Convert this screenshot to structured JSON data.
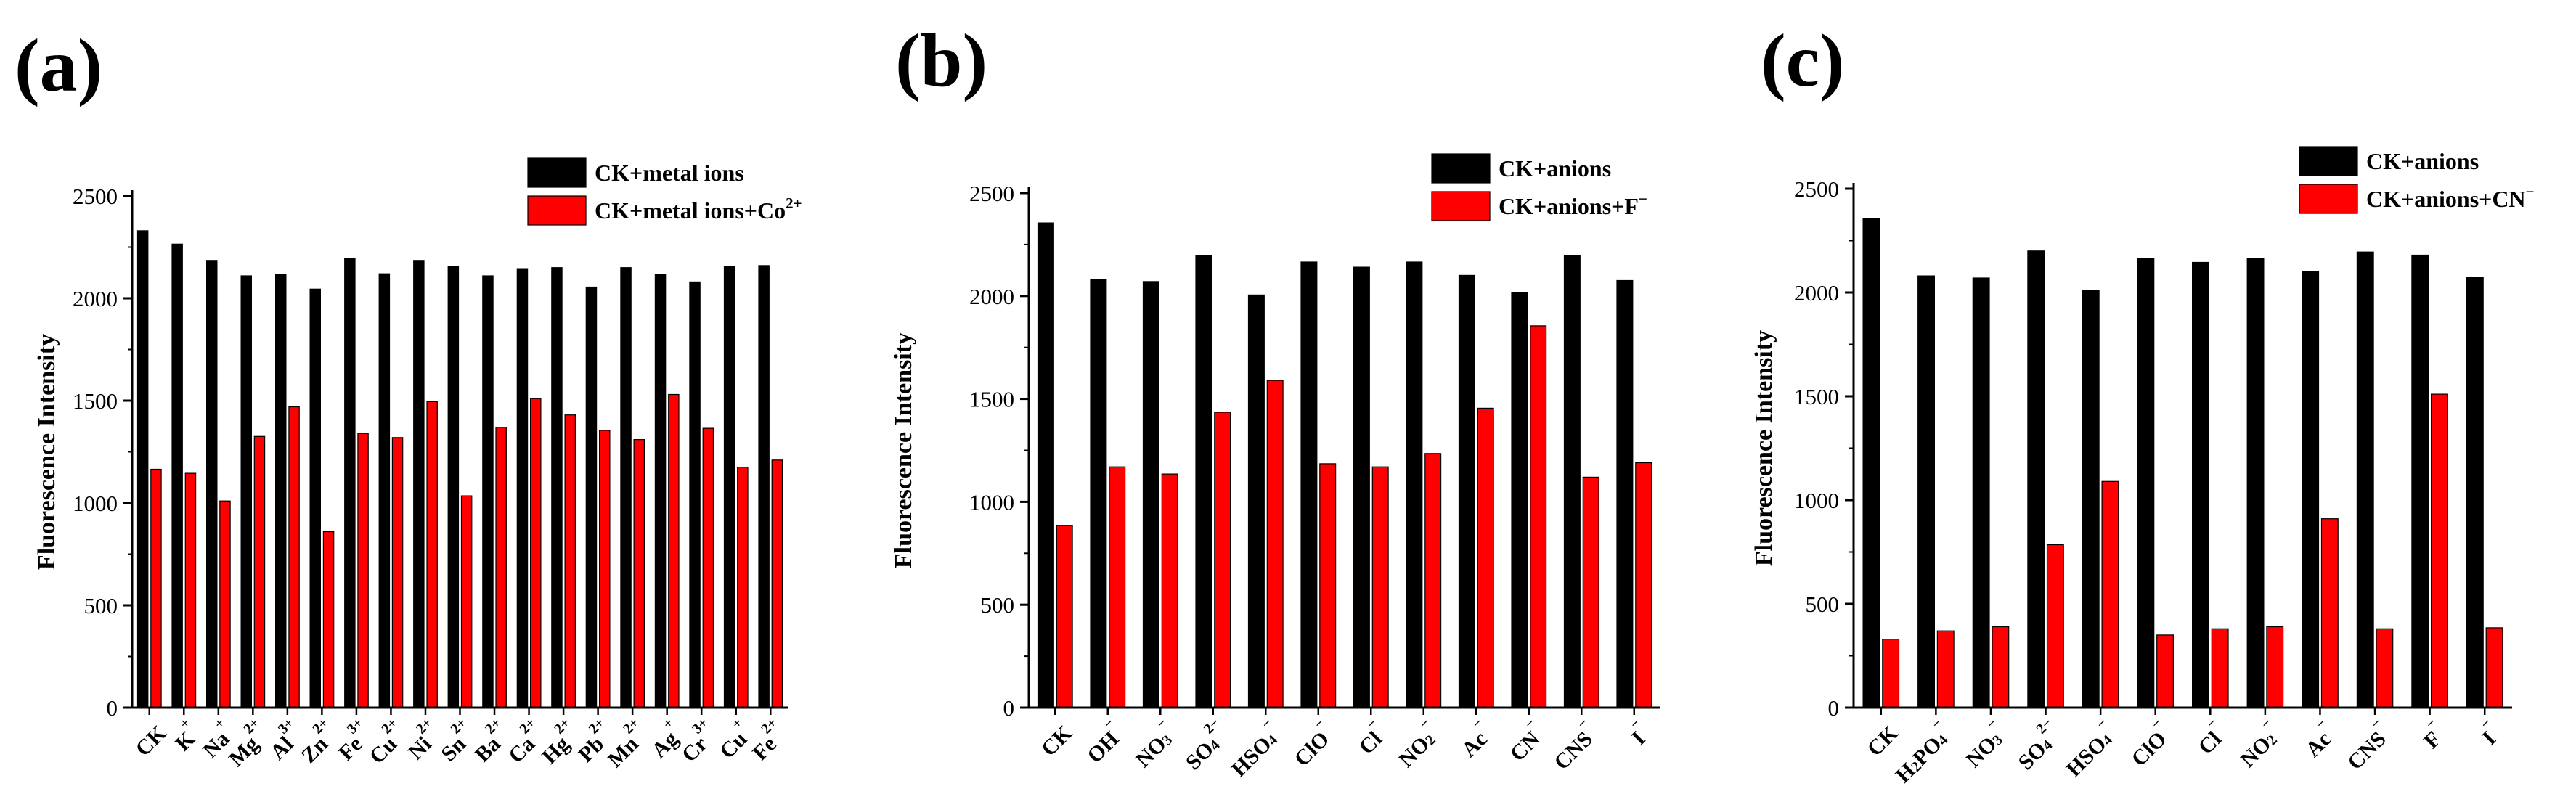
{
  "colors": {
    "black_series": "#000000",
    "red_series": "#ff0000"
  },
  "chart_data": [
    {
      "type": "bar",
      "panel_label": "(a)",
      "ylabel": "Fluorescence Intensity",
      "ylim": [
        0,
        2500
      ],
      "yticks": [
        0,
        500,
        1000,
        1500,
        2000,
        2500
      ],
      "legend_position": "top-right",
      "categories": [
        {
          "base": "CK",
          "sup": ""
        },
        {
          "base": "K",
          "sup": "+"
        },
        {
          "base": "Na",
          "sup": "+"
        },
        {
          "base": "Mg",
          "sup": "2+"
        },
        {
          "base": "Al",
          "sup": "3+"
        },
        {
          "base": "Zn",
          "sup": "2+"
        },
        {
          "base": "Fe",
          "sup": "3+"
        },
        {
          "base": "Cu",
          "sup": "2+"
        },
        {
          "base": "Ni",
          "sup": "2+"
        },
        {
          "base": "Sn",
          "sup": "2+"
        },
        {
          "base": "Ba",
          "sup": "2+"
        },
        {
          "base": "Ca",
          "sup": "2+"
        },
        {
          "base": "Hg",
          "sup": "2+"
        },
        {
          "base": "Pb",
          "sup": "2+"
        },
        {
          "base": "Mn",
          "sup": "2+"
        },
        {
          "base": "Ag",
          "sup": "+"
        },
        {
          "base": "Cr",
          "sup": "3+"
        },
        {
          "base": "Cu",
          "sup": "+"
        },
        {
          "base": "Fe",
          "sup": "2+"
        }
      ],
      "series": [
        {
          "legend_base": "CK+metal ions",
          "legend_sup": "",
          "color": "#000000",
          "values": [
            2330,
            2265,
            2185,
            2110,
            2115,
            2045,
            2195,
            2120,
            2185,
            2155,
            2110,
            2145,
            2150,
            2055,
            2150,
            2115,
            2080,
            2155,
            2160
          ]
        },
        {
          "legend_base": "CK+metal ions+Co",
          "legend_sup": "2+",
          "color": "#ff0000",
          "values": [
            1165,
            1145,
            1010,
            1325,
            1470,
            860,
            1340,
            1320,
            1495,
            1035,
            1370,
            1510,
            1430,
            1355,
            1310,
            1530,
            1365,
            1175,
            1210
          ]
        }
      ]
    },
    {
      "type": "bar",
      "panel_label": "(b)",
      "ylabel": "Fluorescence Intensity",
      "ylim": [
        0,
        2500
      ],
      "yticks": [
        0,
        500,
        1000,
        1500,
        2000,
        2500
      ],
      "legend_position": "top-right",
      "categories": [
        {
          "base": "CK",
          "sup": ""
        },
        {
          "base": "OH",
          "sup": "−"
        },
        {
          "base": "NO",
          "sub": "3",
          "sup": "−"
        },
        {
          "base": "SO",
          "sub": "4",
          "sup": "2−"
        },
        {
          "base": "HSO",
          "sub": "4",
          "sup": "−"
        },
        {
          "base": "ClO",
          "sup": "−"
        },
        {
          "base": "Cl",
          "sup": "−"
        },
        {
          "base": "NO",
          "sub": "2",
          "sup": "−"
        },
        {
          "base": "Ac",
          "sup": "−"
        },
        {
          "base": "CN",
          "sup": "−"
        },
        {
          "base": "CNS",
          "sup": "−"
        },
        {
          "base": "I",
          "sup": "−"
        }
      ],
      "series": [
        {
          "legend_base": "CK+anions",
          "legend_sup": "",
          "color": "#000000",
          "values": [
            2355,
            2080,
            2070,
            2195,
            2005,
            2165,
            2140,
            2165,
            2100,
            2015,
            2195,
            2075
          ]
        },
        {
          "legend_base": "CK+anions+F",
          "legend_sup": "−",
          "color": "#ff0000",
          "values": [
            885,
            1170,
            1135,
            1435,
            1590,
            1185,
            1170,
            1235,
            1455,
            1855,
            1120,
            1190
          ]
        }
      ]
    },
    {
      "type": "bar",
      "panel_label": "(c)",
      "ylabel": "Fluorescence Intensity",
      "ylim": [
        0,
        2500
      ],
      "yticks": [
        0,
        500,
        1000,
        1500,
        2000,
        2500
      ],
      "legend_position": "top-right",
      "categories": [
        {
          "base": "CK",
          "sup": ""
        },
        {
          "base": "H",
          "sub": "2",
          "base2": "PO",
          "sub2": "4",
          "sup": "−"
        },
        {
          "base": "NO",
          "sub": "3",
          "sup": "−"
        },
        {
          "base": "SO",
          "sub": "4",
          "sup": "2−"
        },
        {
          "base": "HSO",
          "sub": "4",
          "sup": "−"
        },
        {
          "base": "ClO",
          "sup": "−"
        },
        {
          "base": "Cl",
          "sup": "−"
        },
        {
          "base": "NO",
          "sub": "2",
          "sup": "−"
        },
        {
          "base": "Ac",
          "sup": "−"
        },
        {
          "base": "CNS",
          "sup": "−"
        },
        {
          "base": "F",
          "sup": "−"
        },
        {
          "base": "I",
          "sup": "−"
        }
      ],
      "series": [
        {
          "legend_base": "CK+anions",
          "legend_sup": "",
          "color": "#000000",
          "values": [
            2355,
            2080,
            2070,
            2200,
            2010,
            2165,
            2145,
            2165,
            2100,
            2195,
            2180,
            2075
          ]
        },
        {
          "legend_base": "CK+anions+CN",
          "legend_sup": "−",
          "color": "#ff0000",
          "values": [
            330,
            370,
            390,
            785,
            1090,
            350,
            380,
            390,
            910,
            380,
            1510,
            385
          ]
        }
      ]
    }
  ]
}
